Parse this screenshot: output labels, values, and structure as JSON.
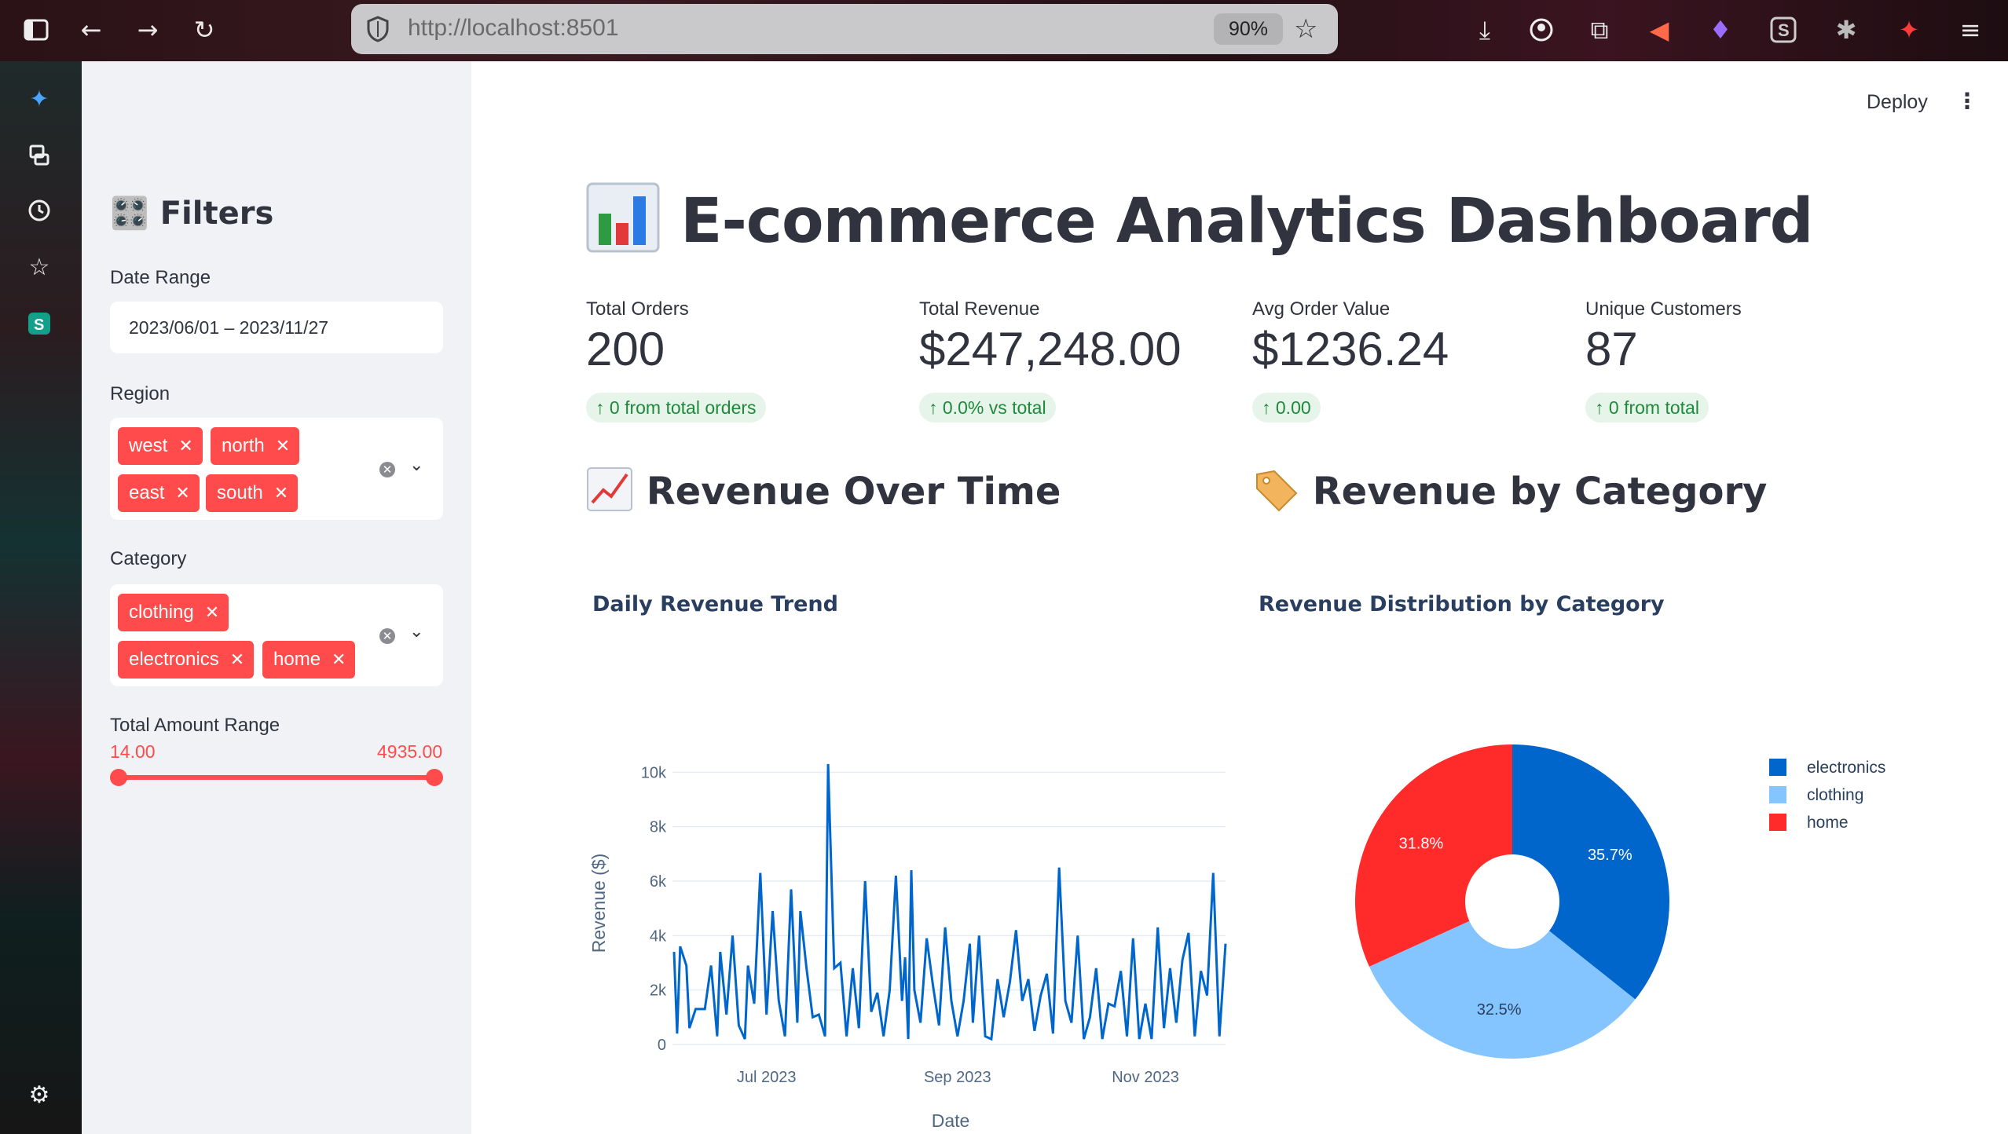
{
  "browser": {
    "url": "http://localhost:8501",
    "zoom": "90%"
  },
  "sidebar": {
    "title": "🎛️ Filters",
    "date_range_label": "Date Range",
    "date_range_value": "2023/06/01 – 2023/11/27",
    "region_label": "Region",
    "regions": [
      "west",
      "north",
      "east",
      "south"
    ],
    "category_label": "Category",
    "categories": [
      "clothing",
      "electronics",
      "home"
    ],
    "amount_label": "Total Amount Range",
    "amount_min": "14.00",
    "amount_max": "4935.00"
  },
  "header": {
    "deploy_label": "Deploy",
    "title": "E-commerce Analytics Dashboard"
  },
  "metrics": [
    {
      "label": "Total Orders",
      "value": "200",
      "delta": "0 from total orders"
    },
    {
      "label": "Total Revenue",
      "value": "$247,248.00",
      "delta": "0.0% vs total"
    },
    {
      "label": "Avg Order Value",
      "value": "$1236.24",
      "delta": "0.00"
    },
    {
      "label": "Unique Customers",
      "value": "87",
      "delta": "0 from total"
    }
  ],
  "sections": {
    "revenue_time": "Revenue Over Time",
    "revenue_category": "Revenue by Category"
  },
  "colors": {
    "accent": "#ff4b4b",
    "line": "#0066cc",
    "electronics": "#0066cc",
    "clothing": "#85c5ff",
    "home": "#ff2b2b"
  },
  "chart_data": [
    {
      "type": "line",
      "title": "Daily Revenue Trend",
      "xlabel": "Date",
      "ylabel": "Revenue ($)",
      "x_ticks": [
        "Jul 2023",
        "Sep 2023",
        "Nov 2023"
      ],
      "y_ticks": [
        "0",
        "2k",
        "4k",
        "6k",
        "8k",
        "10k"
      ],
      "ylim": [
        0,
        10500
      ],
      "xlim": [
        "2023-06-01",
        "2023-11-27"
      ],
      "grid": true,
      "x": [
        "2023-06-01",
        "2023-06-02",
        "2023-06-03",
        "2023-06-05",
        "2023-06-06",
        "2023-06-08",
        "2023-06-10",
        "2023-06-11",
        "2023-06-13",
        "2023-06-15",
        "2023-06-16",
        "2023-06-18",
        "2023-06-20",
        "2023-06-22",
        "2023-06-24",
        "2023-06-25",
        "2023-06-27",
        "2023-06-29",
        "2023-07-01",
        "2023-07-03",
        "2023-07-05",
        "2023-07-07",
        "2023-07-09",
        "2023-07-11",
        "2023-07-12",
        "2023-07-14",
        "2023-07-16",
        "2023-07-18",
        "2023-07-20",
        "2023-07-21",
        "2023-07-23",
        "2023-07-25",
        "2023-07-27",
        "2023-07-29",
        "2023-07-31",
        "2023-08-02",
        "2023-08-04",
        "2023-08-06",
        "2023-08-08",
        "2023-08-10",
        "2023-08-12",
        "2023-08-14",
        "2023-08-15",
        "2023-08-16",
        "2023-08-17",
        "2023-08-18",
        "2023-08-20",
        "2023-08-22",
        "2023-08-24",
        "2023-08-26",
        "2023-08-28",
        "2023-08-30",
        "2023-09-01",
        "2023-09-03",
        "2023-09-05",
        "2023-09-06",
        "2023-09-08",
        "2023-09-10",
        "2023-09-12",
        "2023-09-14",
        "2023-09-16",
        "2023-09-18",
        "2023-09-20",
        "2023-09-22",
        "2023-09-24",
        "2023-09-26",
        "2023-09-28",
        "2023-09-30",
        "2023-10-02",
        "2023-10-04",
        "2023-10-06",
        "2023-10-08",
        "2023-10-10",
        "2023-10-12",
        "2023-10-14",
        "2023-10-16",
        "2023-10-18",
        "2023-10-20",
        "2023-10-22",
        "2023-10-24",
        "2023-10-26",
        "2023-10-28",
        "2023-10-30",
        "2023-11-01",
        "2023-11-03",
        "2023-11-05",
        "2023-11-07",
        "2023-11-09",
        "2023-11-11",
        "2023-11-13",
        "2023-11-15",
        "2023-11-17",
        "2023-11-19",
        "2023-11-21",
        "2023-11-23",
        "2023-11-25",
        "2023-11-27"
      ],
      "series": [
        {
          "values": [
            3400,
            400,
            3600,
            2900,
            600,
            1300,
            1300,
            1300,
            2900,
            300,
            3400,
            1100,
            4000,
            700,
            200,
            2900,
            1500,
            6300,
            1100,
            4900,
            1600,
            300,
            5700,
            800,
            4900,
            2800,
            1000,
            1100,
            300,
            10300,
            2800,
            3000,
            300,
            2800,
            600,
            6000,
            1200,
            1900,
            300,
            2000,
            6200,
            1600,
            3200,
            200,
            6400,
            2000,
            800,
            3900,
            2200,
            700,
            4300,
            1600,
            300,
            1600,
            3700,
            800,
            4000,
            300,
            200,
            2400,
            1000,
            2300,
            4200,
            1600,
            2400,
            500,
            1800,
            2600,
            400,
            6500,
            1600,
            800,
            4000,
            200,
            1000,
            2800,
            200,
            1500,
            1400,
            2700,
            300,
            3900,
            200,
            1500,
            200,
            4300,
            600,
            2800,
            800,
            3100,
            4100,
            300,
            2700,
            1800,
            6300,
            300,
            3700
          ]
        }
      ]
    },
    {
      "type": "pie",
      "title": "Revenue Distribution by Category",
      "categories": [
        "electronics",
        "clothing",
        "home"
      ],
      "values": [
        35.7,
        32.5,
        31.8
      ],
      "labels": [
        "35.7%",
        "32.5%",
        "31.8%"
      ],
      "hole": true,
      "legend": "top-right"
    }
  ]
}
